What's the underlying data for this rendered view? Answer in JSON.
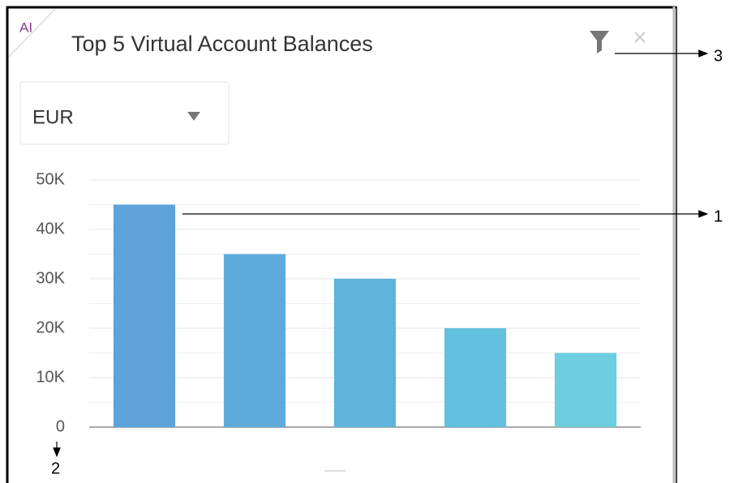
{
  "badge": "AI",
  "currency": "EUR",
  "callouts": [
    "1",
    "2",
    "3"
  ],
  "chart_data": {
    "type": "bar",
    "title": "Top 5 Virtual Account Balances",
    "categories": [
      null,
      null,
      null,
      null,
      null
    ],
    "values": [
      45000,
      35000,
      30000,
      20000,
      15000
    ],
    "colors": [
      "#5da3d9",
      "#5eabdb",
      "#5fb3dc",
      "#63c0df",
      "#6dcde1"
    ],
    "ylim": [
      0,
      50000
    ],
    "yticks": [
      0,
      {
        "value": 10000,
        "label": "10K"
      },
      {
        "value": 20000,
        "label": "20K"
      },
      {
        "value": 30000,
        "label": "30K"
      },
      {
        "value": 40000,
        "label": "40K"
      },
      {
        "value": 50000,
        "label": "50K"
      }
    ],
    "minor_yticks": [
      5000,
      15000,
      25000,
      35000,
      45000
    ],
    "grid": true
  }
}
